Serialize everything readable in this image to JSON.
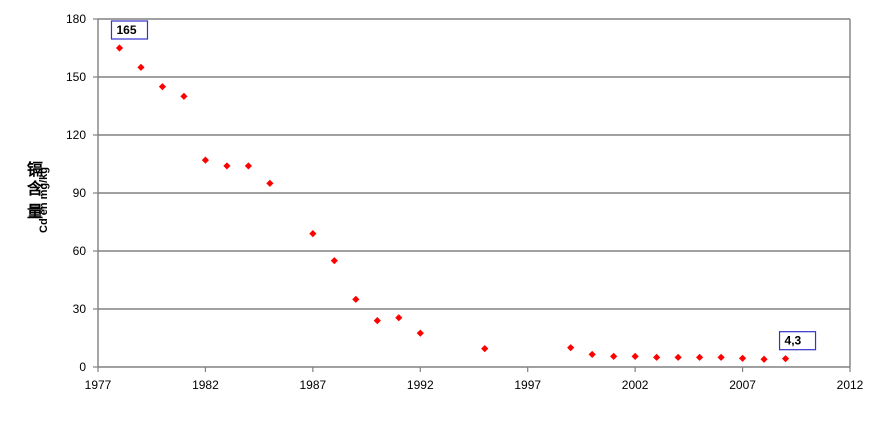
{
  "chart_data": {
    "type": "scatter",
    "title": "",
    "ylabel_cn": "镉含量",
    "ylabel": "Cd en mg/kg",
    "xlabel": "",
    "xlim": [
      1977,
      2012
    ],
    "ylim": [
      0,
      180
    ],
    "xticks": [
      1977,
      1982,
      1987,
      1992,
      1997,
      2002,
      2007,
      2012
    ],
    "yticks": [
      0,
      30,
      60,
      90,
      120,
      150,
      180
    ],
    "grid": "horizontal",
    "marker_color": "#ff0000",
    "marker": "diamond",
    "points": [
      {
        "x": 1978,
        "y": 165
      },
      {
        "x": 1979,
        "y": 155
      },
      {
        "x": 1980,
        "y": 145
      },
      {
        "x": 1981,
        "y": 140
      },
      {
        "x": 1982,
        "y": 107
      },
      {
        "x": 1983,
        "y": 104
      },
      {
        "x": 1984,
        "y": 104
      },
      {
        "x": 1985,
        "y": 95
      },
      {
        "x": 1987,
        "y": 69
      },
      {
        "x": 1988,
        "y": 55
      },
      {
        "x": 1989,
        "y": 35
      },
      {
        "x": 1990,
        "y": 24
      },
      {
        "x": 1991,
        "y": 25.5
      },
      {
        "x": 1992,
        "y": 17.5
      },
      {
        "x": 1995,
        "y": 9.5
      },
      {
        "x": 1999,
        "y": 10
      },
      {
        "x": 2000,
        "y": 6.5
      },
      {
        "x": 2001,
        "y": 5.5
      },
      {
        "x": 2002,
        "y": 5.5
      },
      {
        "x": 2003,
        "y": 5
      },
      {
        "x": 2004,
        "y": 5
      },
      {
        "x": 2005,
        "y": 5
      },
      {
        "x": 2006,
        "y": 5
      },
      {
        "x": 2007,
        "y": 4.5
      },
      {
        "x": 2008,
        "y": 4
      },
      {
        "x": 2009,
        "y": 4.3
      }
    ],
    "annotations": [
      {
        "text": "165",
        "x": 1978,
        "y": 165
      },
      {
        "text": "4,3",
        "x": 2009,
        "y": 4.3
      }
    ]
  }
}
